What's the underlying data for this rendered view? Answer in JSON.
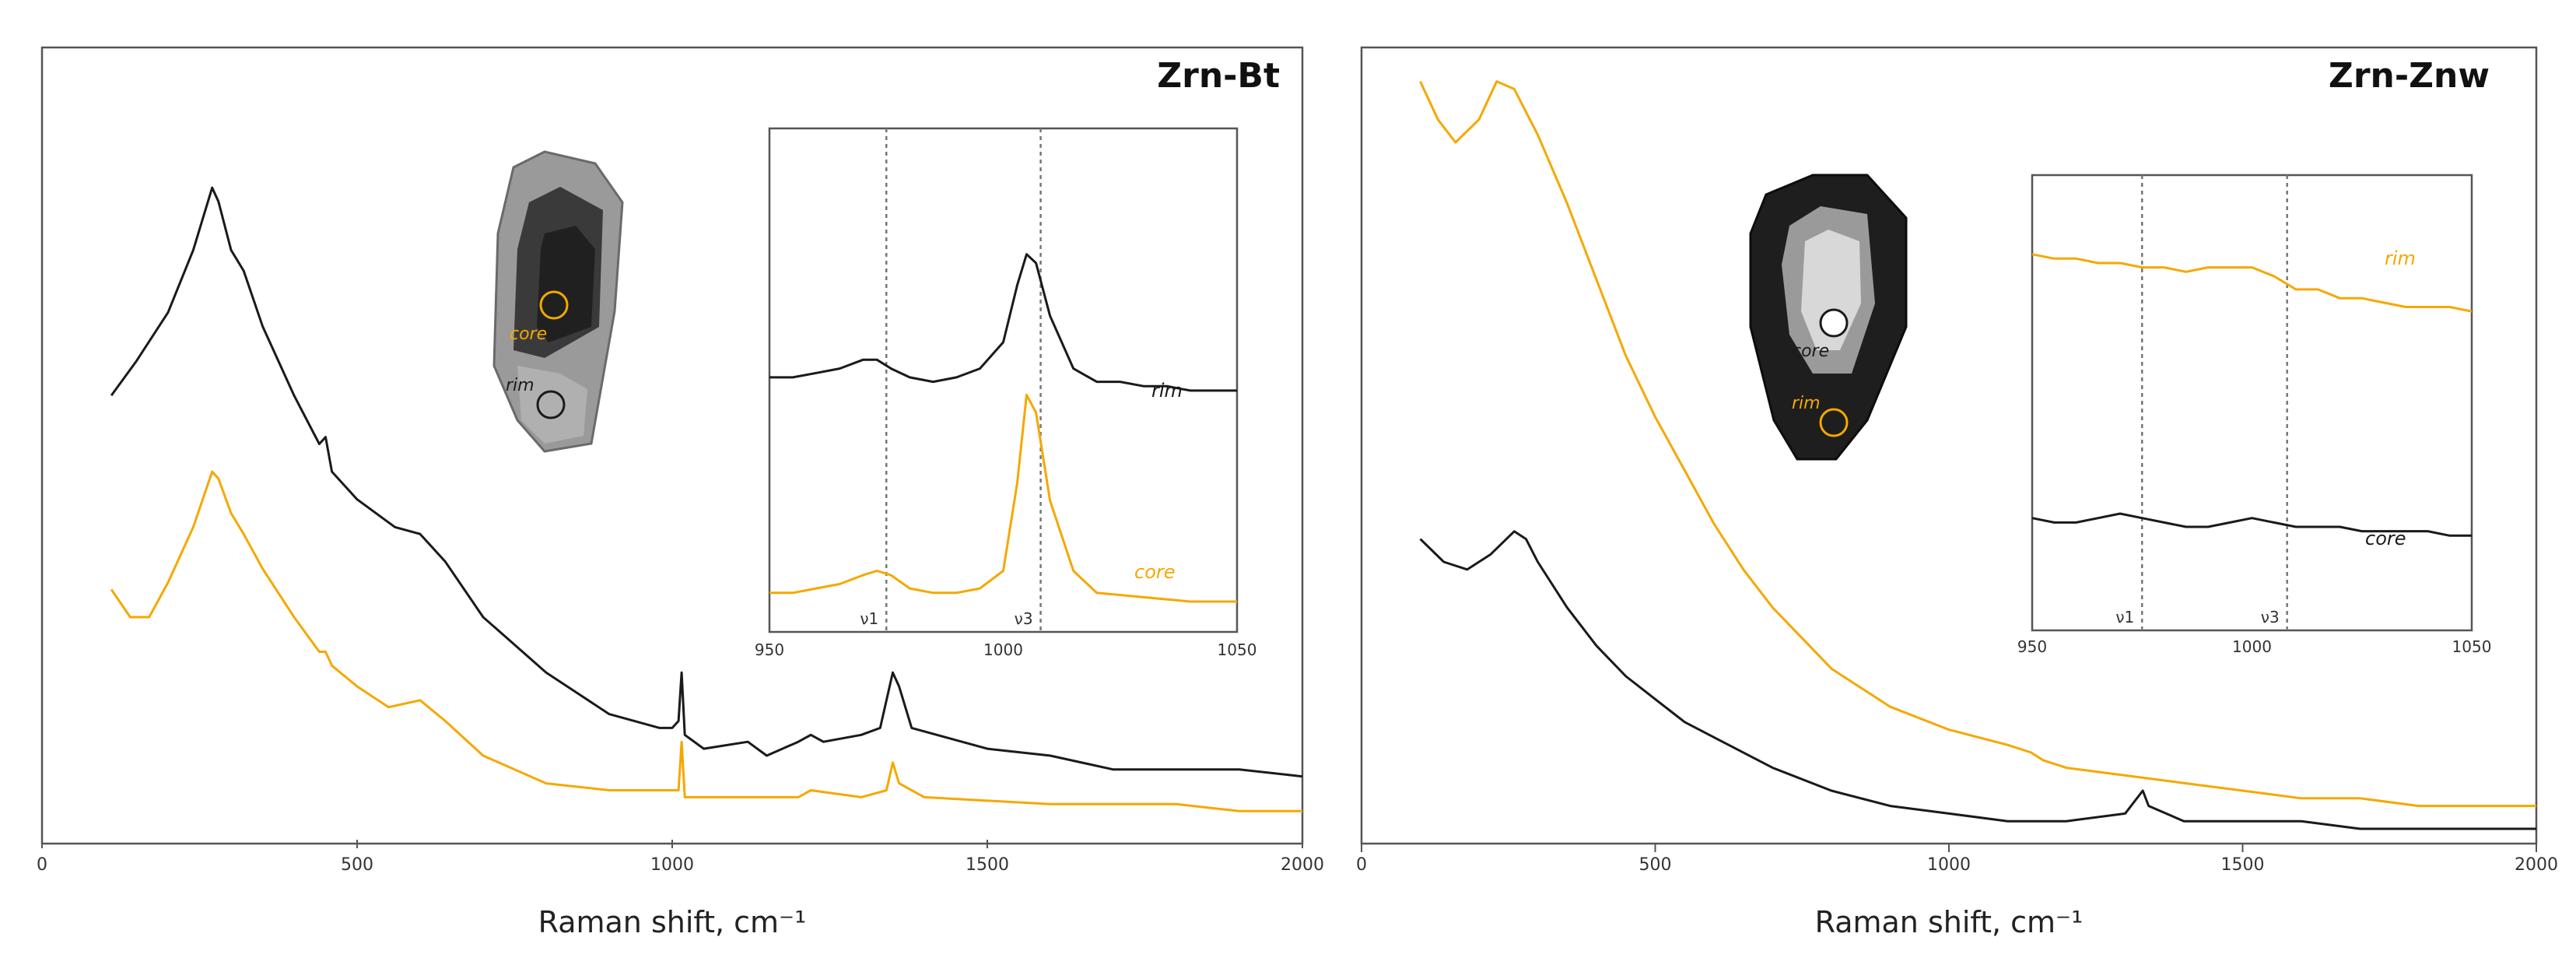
{
  "colors": {
    "rim": "#1a1a1a",
    "core": "#f5a800",
    "frame": "#555555"
  },
  "chart_data": [
    {
      "type": "line",
      "title": "Zrn-Bt",
      "xlabel": "Raman shift, cm⁻¹",
      "xlim": [
        0,
        2000
      ],
      "xticks": [
        "0",
        "500",
        "1000",
        "1500",
        "2000"
      ],
      "grain_labels": {
        "core": "core",
        "rim": "rim"
      },
      "series": [
        {
          "name": "rim",
          "color": "#1a1a1a",
          "points": [
            [
              110,
              0.62
            ],
            [
              150,
              0.67
            ],
            [
              200,
              0.74
            ],
            [
              240,
              0.83
            ],
            [
              270,
              0.92
            ],
            [
              280,
              0.9
            ],
            [
              300,
              0.83
            ],
            [
              320,
              0.8
            ],
            [
              350,
              0.72
            ],
            [
              400,
              0.62
            ],
            [
              440,
              0.55
            ],
            [
              450,
              0.56
            ],
            [
              460,
              0.51
            ],
            [
              500,
              0.47
            ],
            [
              560,
              0.43
            ],
            [
              600,
              0.42
            ],
            [
              640,
              0.38
            ],
            [
              700,
              0.3
            ],
            [
              800,
              0.22
            ],
            [
              900,
              0.16
            ],
            [
              980,
              0.14
            ],
            [
              1000,
              0.14
            ],
            [
              1010,
              0.15
            ],
            [
              1015,
              0.22
            ],
            [
              1020,
              0.13
            ],
            [
              1050,
              0.11
            ],
            [
              1120,
              0.12
            ],
            [
              1150,
              0.1
            ],
            [
              1200,
              0.12
            ],
            [
              1220,
              0.13
            ],
            [
              1240,
              0.12
            ],
            [
              1300,
              0.13
            ],
            [
              1330,
              0.14
            ],
            [
              1350,
              0.22
            ],
            [
              1360,
              0.2
            ],
            [
              1380,
              0.14
            ],
            [
              1500,
              0.11
            ],
            [
              1600,
              0.1
            ],
            [
              1700,
              0.08
            ],
            [
              1800,
              0.08
            ],
            [
              1900,
              0.08
            ],
            [
              2000,
              0.07
            ]
          ]
        },
        {
          "name": "core",
          "color": "#f5a800",
          "points": [
            [
              110,
              0.34
            ],
            [
              140,
              0.3
            ],
            [
              170,
              0.3
            ],
            [
              200,
              0.35
            ],
            [
              240,
              0.43
            ],
            [
              270,
              0.51
            ],
            [
              280,
              0.5
            ],
            [
              300,
              0.45
            ],
            [
              320,
              0.42
            ],
            [
              350,
              0.37
            ],
            [
              400,
              0.3
            ],
            [
              440,
              0.25
            ],
            [
              450,
              0.25
            ],
            [
              460,
              0.23
            ],
            [
              500,
              0.2
            ],
            [
              550,
              0.17
            ],
            [
              600,
              0.18
            ],
            [
              640,
              0.15
            ],
            [
              700,
              0.1
            ],
            [
              800,
              0.06
            ],
            [
              900,
              0.05
            ],
            [
              1000,
              0.05
            ],
            [
              1010,
              0.05
            ],
            [
              1015,
              0.12
            ],
            [
              1020,
              0.04
            ],
            [
              1100,
              0.04
            ],
            [
              1200,
              0.04
            ],
            [
              1220,
              0.05
            ],
            [
              1300,
              0.04
            ],
            [
              1340,
              0.05
            ],
            [
              1350,
              0.09
            ],
            [
              1360,
              0.06
            ],
            [
              1400,
              0.04
            ],
            [
              1600,
              0.03
            ],
            [
              1700,
              0.03
            ],
            [
              1800,
              0.03
            ],
            [
              1900,
              0.02
            ],
            [
              2000,
              0.02
            ]
          ]
        }
      ],
      "inset": {
        "xlim": [
          950,
          1050
        ],
        "xticks": [
          "950",
          "1000",
          "1050"
        ],
        "markers": [
          {
            "label": "ν1",
            "x": 975
          },
          {
            "label": "ν3",
            "x": 1008
          }
        ],
        "series": [
          {
            "name": "rim",
            "color": "#1a1a1a",
            "points": [
              [
                950,
                0.54
              ],
              [
                955,
                0.54
              ],
              [
                960,
                0.55
              ],
              [
                965,
                0.56
              ],
              [
                970,
                0.58
              ],
              [
                973,
                0.58
              ],
              [
                976,
                0.56
              ],
              [
                980,
                0.54
              ],
              [
                985,
                0.53
              ],
              [
                990,
                0.54
              ],
              [
                995,
                0.56
              ],
              [
                1000,
                0.62
              ],
              [
                1003,
                0.75
              ],
              [
                1005,
                0.82
              ],
              [
                1007,
                0.8
              ],
              [
                1010,
                0.68
              ],
              [
                1015,
                0.56
              ],
              [
                1020,
                0.53
              ],
              [
                1025,
                0.53
              ],
              [
                1030,
                0.52
              ],
              [
                1035,
                0.52
              ],
              [
                1040,
                0.51
              ],
              [
                1045,
                0.51
              ],
              [
                1050,
                0.51
              ]
            ]
          },
          {
            "name": "core",
            "color": "#f5a800",
            "points": [
              [
                950,
                0.05
              ],
              [
                955,
                0.05
              ],
              [
                960,
                0.06
              ],
              [
                965,
                0.07
              ],
              [
                970,
                0.09
              ],
              [
                973,
                0.1
              ],
              [
                976,
                0.09
              ],
              [
                980,
                0.06
              ],
              [
                985,
                0.05
              ],
              [
                990,
                0.05
              ],
              [
                995,
                0.06
              ],
              [
                1000,
                0.1
              ],
              [
                1003,
                0.3
              ],
              [
                1005,
                0.5
              ],
              [
                1007,
                0.46
              ],
              [
                1010,
                0.26
              ],
              [
                1015,
                0.1
              ],
              [
                1020,
                0.05
              ],
              [
                1030,
                0.04
              ],
              [
                1040,
                0.03
              ],
              [
                1050,
                0.03
              ]
            ]
          }
        ]
      }
    },
    {
      "type": "line",
      "title": "Zrn-Znw",
      "xlabel": "Raman shift, cm⁻¹",
      "xlim": [
        0,
        2000
      ],
      "xticks": [
        "0",
        "500",
        "1000",
        "1500",
        "2000"
      ],
      "grain_labels": {
        "core": "core",
        "rim": "rim"
      },
      "series": [
        {
          "name": "rim",
          "color": "#f5a800",
          "points": [
            [
              100,
              0.98
            ],
            [
              130,
              0.93
            ],
            [
              160,
              0.9
            ],
            [
              200,
              0.93
            ],
            [
              230,
              0.98
            ],
            [
              260,
              0.97
            ],
            [
              300,
              0.91
            ],
            [
              350,
              0.82
            ],
            [
              400,
              0.72
            ],
            [
              450,
              0.62
            ],
            [
              500,
              0.54
            ],
            [
              550,
              0.47
            ],
            [
              600,
              0.4
            ],
            [
              650,
              0.34
            ],
            [
              700,
              0.29
            ],
            [
              800,
              0.21
            ],
            [
              900,
              0.16
            ],
            [
              1000,
              0.13
            ],
            [
              1100,
              0.11
            ],
            [
              1140,
              0.1
            ],
            [
              1160,
              0.09
            ],
            [
              1200,
              0.08
            ],
            [
              1300,
              0.07
            ],
            [
              1400,
              0.06
            ],
            [
              1500,
              0.05
            ],
            [
              1600,
              0.04
            ],
            [
              1700,
              0.04
            ],
            [
              1800,
              0.03
            ],
            [
              1900,
              0.03
            ],
            [
              2000,
              0.03
            ]
          ]
        },
        {
          "name": "core",
          "color": "#1a1a1a",
          "points": [
            [
              100,
              0.38
            ],
            [
              140,
              0.35
            ],
            [
              180,
              0.34
            ],
            [
              220,
              0.36
            ],
            [
              260,
              0.39
            ],
            [
              280,
              0.38
            ],
            [
              300,
              0.35
            ],
            [
              350,
              0.29
            ],
            [
              400,
              0.24
            ],
            [
              450,
              0.2
            ],
            [
              500,
              0.17
            ],
            [
              550,
              0.14
            ],
            [
              600,
              0.12
            ],
            [
              700,
              0.08
            ],
            [
              800,
              0.05
            ],
            [
              900,
              0.03
            ],
            [
              1000,
              0.02
            ],
            [
              1100,
              0.01
            ],
            [
              1200,
              0.01
            ],
            [
              1300,
              0.02
            ],
            [
              1330,
              0.05
            ],
            [
              1340,
              0.03
            ],
            [
              1400,
              0.01
            ],
            [
              1500,
              0.01
            ],
            [
              1600,
              0.01
            ],
            [
              1700,
              0.0
            ],
            [
              1800,
              0.0
            ],
            [
              2000,
              0.0
            ]
          ]
        }
      ],
      "inset": {
        "xlim": [
          950,
          1050
        ],
        "xticks": [
          "950",
          "1000",
          "1050"
        ],
        "markers": [
          {
            "label": "ν1",
            "x": 975
          },
          {
            "label": "ν3",
            "x": 1008
          }
        ],
        "series": [
          {
            "name": "rim",
            "color": "#f5a800",
            "points": [
              [
                950,
                0.82
              ],
              [
                955,
                0.81
              ],
              [
                960,
                0.81
              ],
              [
                965,
                0.8
              ],
              [
                970,
                0.8
              ],
              [
                975,
                0.79
              ],
              [
                980,
                0.79
              ],
              [
                985,
                0.78
              ],
              [
                990,
                0.79
              ],
              [
                995,
                0.79
              ],
              [
                1000,
                0.79
              ],
              [
                1005,
                0.77
              ],
              [
                1010,
                0.74
              ],
              [
                1015,
                0.74
              ],
              [
                1020,
                0.72
              ],
              [
                1025,
                0.72
              ],
              [
                1030,
                0.71
              ],
              [
                1035,
                0.7
              ],
              [
                1040,
                0.7
              ],
              [
                1045,
                0.7
              ],
              [
                1050,
                0.69
              ]
            ]
          },
          {
            "name": "core",
            "color": "#1a1a1a",
            "points": [
              [
                950,
                0.22
              ],
              [
                955,
                0.21
              ],
              [
                960,
                0.21
              ],
              [
                965,
                0.22
              ],
              [
                970,
                0.23
              ],
              [
                975,
                0.22
              ],
              [
                980,
                0.21
              ],
              [
                985,
                0.2
              ],
              [
                990,
                0.2
              ],
              [
                995,
                0.21
              ],
              [
                1000,
                0.22
              ],
              [
                1005,
                0.21
              ],
              [
                1010,
                0.2
              ],
              [
                1015,
                0.2
              ],
              [
                1020,
                0.2
              ],
              [
                1025,
                0.19
              ],
              [
                1030,
                0.19
              ],
              [
                1035,
                0.19
              ],
              [
                1040,
                0.19
              ],
              [
                1045,
                0.18
              ],
              [
                1050,
                0.18
              ]
            ]
          }
        ]
      }
    }
  ]
}
